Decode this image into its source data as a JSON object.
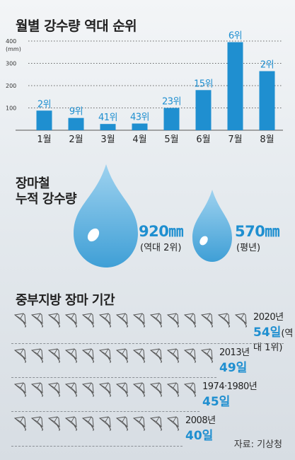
{
  "chart_data": {
    "type": "bar",
    "title": "월별 강수량 역대 순위",
    "unit_label": "(mm)",
    "categories": [
      "1월",
      "2월",
      "3월",
      "4월",
      "5월",
      "6월",
      "7월",
      "8월"
    ],
    "values": [
      88,
      55,
      28,
      30,
      100,
      180,
      395,
      265
    ],
    "ranks": [
      "2위",
      "9위",
      "41위",
      "43위",
      "23위",
      "15위",
      "6위",
      "2위"
    ],
    "yticks": [
      100,
      200,
      300,
      400
    ],
    "ylim": [
      0,
      400
    ],
    "color": "#1f8fd0"
  },
  "rainfall": {
    "title_line1": "장마철",
    "title_line2": "누적 강수량",
    "record": {
      "value": "920㎜",
      "note": "(역대 2위)"
    },
    "normal": {
      "value": "570㎜",
      "note": "(평년)"
    }
  },
  "monsoon": {
    "title": "중부지방 장마 기간",
    "rows": [
      {
        "year": "2020년",
        "days": "54일",
        "tag": "(역대 1위)",
        "umbrellas": 14
      },
      {
        "year": "2013년",
        "days": "49일",
        "tag": "",
        "umbrellas": 12
      },
      {
        "year": "1974·1980년",
        "days": "45일",
        "tag": "",
        "umbrellas": 11
      },
      {
        "year": "2008년",
        "days": "40일",
        "tag": "",
        "umbrellas": 10
      }
    ]
  },
  "source": "자료: 기상청"
}
